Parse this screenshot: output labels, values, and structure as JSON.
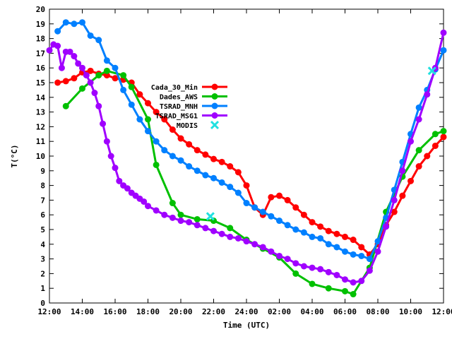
{
  "chart_data": {
    "type": "line",
    "xlabel": "Time (UTC)",
    "ylabel": "T(°C)",
    "x_start": "12:00",
    "x_end": "12:00 (next day)",
    "x_range_hours": [
      0,
      24
    ],
    "ylim": [
      0,
      20
    ],
    "y_ticks": [
      0,
      1,
      2,
      3,
      4,
      5,
      6,
      7,
      8,
      9,
      10,
      11,
      12,
      13,
      14,
      15,
      16,
      17,
      18,
      19,
      20
    ],
    "x_ticks": [
      {
        "h": 0,
        "label": "12:00"
      },
      {
        "h": 2,
        "label": "14:00"
      },
      {
        "h": 4,
        "label": "16:00"
      },
      {
        "h": 6,
        "label": "18:00"
      },
      {
        "h": 8,
        "label": "20:00"
      },
      {
        "h": 10,
        "label": "22:00"
      },
      {
        "h": 12,
        "label": "24:00"
      },
      {
        "h": 14,
        "label": "02:00"
      },
      {
        "h": 16,
        "label": "04:00"
      },
      {
        "h": 18,
        "label": "06:00"
      },
      {
        "h": 20,
        "label": "08:00"
      },
      {
        "h": 22,
        "label": "10:00"
      },
      {
        "h": 24,
        "label": "12:00"
      }
    ],
    "grid": false,
    "legend_position": "center-left",
    "series": [
      {
        "name": "Cada_30_Min",
        "color": "#ff0000",
        "marker": "circle",
        "points": [
          [
            0.5,
            15.0
          ],
          [
            1.0,
            15.1
          ],
          [
            1.5,
            15.3
          ],
          [
            2.0,
            15.7
          ],
          [
            2.5,
            15.8
          ],
          [
            3.0,
            15.6
          ],
          [
            3.5,
            15.5
          ],
          [
            4.0,
            15.3
          ],
          [
            4.5,
            15.2
          ],
          [
            5.0,
            15.0
          ],
          [
            5.5,
            14.2
          ],
          [
            6.0,
            13.6
          ],
          [
            6.5,
            13.0
          ],
          [
            7.0,
            12.5
          ],
          [
            7.5,
            11.8
          ],
          [
            8.0,
            11.2
          ],
          [
            8.5,
            10.8
          ],
          [
            9.0,
            10.4
          ],
          [
            9.5,
            10.1
          ],
          [
            10.0,
            9.8
          ],
          [
            10.5,
            9.6
          ],
          [
            11.0,
            9.3
          ],
          [
            11.5,
            8.9
          ],
          [
            12.0,
            8.0
          ],
          [
            12.5,
            6.5
          ],
          [
            13.0,
            6.0
          ],
          [
            13.5,
            7.2
          ],
          [
            14.0,
            7.3
          ],
          [
            14.5,
            7.0
          ],
          [
            15.0,
            6.5
          ],
          [
            15.5,
            6.0
          ],
          [
            16.0,
            5.5
          ],
          [
            16.5,
            5.2
          ],
          [
            17.0,
            4.9
          ],
          [
            17.5,
            4.7
          ],
          [
            18.0,
            4.5
          ],
          [
            18.5,
            4.3
          ],
          [
            19.0,
            3.8
          ],
          [
            19.5,
            3.3
          ],
          [
            20.0,
            4.0
          ],
          [
            20.5,
            5.3
          ],
          [
            21.0,
            6.2
          ],
          [
            21.5,
            7.3
          ],
          [
            22.0,
            8.3
          ],
          [
            22.5,
            9.3
          ],
          [
            23.0,
            10.0
          ],
          [
            23.5,
            10.7
          ],
          [
            24.0,
            11.3
          ]
        ]
      },
      {
        "name": "Dades_AWS",
        "color": "#00c000",
        "marker": "circle",
        "points": [
          [
            1.0,
            13.4
          ],
          [
            2.0,
            14.6
          ],
          [
            3.0,
            15.5
          ],
          [
            3.5,
            15.8
          ],
          [
            4.5,
            15.5
          ],
          [
            5.0,
            14.7
          ],
          [
            6.0,
            12.5
          ],
          [
            6.5,
            9.4
          ],
          [
            7.5,
            6.8
          ],
          [
            8.0,
            6.0
          ],
          [
            9.0,
            5.7
          ],
          [
            10.0,
            5.6
          ],
          [
            11.0,
            5.1
          ],
          [
            12.0,
            4.3
          ],
          [
            13.0,
            3.7
          ],
          [
            14.0,
            3.1
          ],
          [
            15.0,
            2.0
          ],
          [
            16.0,
            1.3
          ],
          [
            17.0,
            1.0
          ],
          [
            18.0,
            0.8
          ],
          [
            18.5,
            0.6
          ],
          [
            19.5,
            2.4
          ],
          [
            20.5,
            6.2
          ],
          [
            21.5,
            8.6
          ],
          [
            22.5,
            10.4
          ],
          [
            23.5,
            11.5
          ],
          [
            24.0,
            11.7
          ]
        ]
      },
      {
        "name": "TSRAD_MNH",
        "color": "#0080ff",
        "marker": "circle",
        "points": [
          [
            0.5,
            18.5
          ],
          [
            1.0,
            19.1
          ],
          [
            1.5,
            19.0
          ],
          [
            2.0,
            19.1
          ],
          [
            2.5,
            18.2
          ],
          [
            3.0,
            17.9
          ],
          [
            3.5,
            16.5
          ],
          [
            4.0,
            16.0
          ],
          [
            4.5,
            14.5
          ],
          [
            5.0,
            13.5
          ],
          [
            5.5,
            12.5
          ],
          [
            6.0,
            11.7
          ],
          [
            6.5,
            11.0
          ],
          [
            7.0,
            10.4
          ],
          [
            7.5,
            10.0
          ],
          [
            8.0,
            9.7
          ],
          [
            8.5,
            9.3
          ],
          [
            9.0,
            9.0
          ],
          [
            9.5,
            8.7
          ],
          [
            10.0,
            8.5
          ],
          [
            10.5,
            8.2
          ],
          [
            11.0,
            7.9
          ],
          [
            11.5,
            7.5
          ],
          [
            12.0,
            6.8
          ],
          [
            12.5,
            6.5
          ],
          [
            13.0,
            6.2
          ],
          [
            13.5,
            5.9
          ],
          [
            14.0,
            5.6
          ],
          [
            14.5,
            5.3
          ],
          [
            15.0,
            5.0
          ],
          [
            15.5,
            4.8
          ],
          [
            16.0,
            4.5
          ],
          [
            16.5,
            4.4
          ],
          [
            17.0,
            4.0
          ],
          [
            17.5,
            3.8
          ],
          [
            18.0,
            3.5
          ],
          [
            18.5,
            3.3
          ],
          [
            19.0,
            3.2
          ],
          [
            19.5,
            3.0
          ],
          [
            20.0,
            4.2
          ],
          [
            20.5,
            5.8
          ],
          [
            21.0,
            7.7
          ],
          [
            21.5,
            9.6
          ],
          [
            22.0,
            11.5
          ],
          [
            22.5,
            13.3
          ],
          [
            23.0,
            14.5
          ],
          [
            23.5,
            15.9
          ],
          [
            24.0,
            17.2
          ]
        ]
      },
      {
        "name": "TSRAD_MSG1",
        "color": "#a000ff",
        "marker": "circle",
        "points": [
          [
            0.0,
            17.2
          ],
          [
            0.25,
            17.6
          ],
          [
            0.5,
            17.5
          ],
          [
            0.75,
            16.0
          ],
          [
            1.0,
            17.1
          ],
          [
            1.25,
            17.1
          ],
          [
            1.5,
            16.8
          ],
          [
            1.75,
            16.3
          ],
          [
            2.0,
            16.0
          ],
          [
            2.25,
            15.5
          ],
          [
            2.5,
            15.0
          ],
          [
            2.75,
            14.3
          ],
          [
            3.0,
            13.4
          ],
          [
            3.25,
            12.2
          ],
          [
            3.5,
            11.0
          ],
          [
            3.75,
            10.0
          ],
          [
            4.0,
            9.2
          ],
          [
            4.25,
            8.3
          ],
          [
            4.5,
            8.0
          ],
          [
            4.75,
            7.8
          ],
          [
            5.0,
            7.5
          ],
          [
            5.25,
            7.3
          ],
          [
            5.5,
            7.1
          ],
          [
            5.75,
            6.9
          ],
          [
            6.0,
            6.6
          ],
          [
            6.5,
            6.3
          ],
          [
            7.0,
            6.0
          ],
          [
            7.5,
            5.8
          ],
          [
            8.0,
            5.6
          ],
          [
            8.5,
            5.5
          ],
          [
            9.0,
            5.3
          ],
          [
            9.5,
            5.1
          ],
          [
            10.0,
            4.9
          ],
          [
            10.5,
            4.7
          ],
          [
            11.0,
            4.5
          ],
          [
            11.5,
            4.4
          ],
          [
            12.0,
            4.2
          ],
          [
            12.5,
            4.0
          ],
          [
            13.0,
            3.8
          ],
          [
            13.5,
            3.5
          ],
          [
            14.0,
            3.2
          ],
          [
            14.5,
            3.0
          ],
          [
            15.0,
            2.7
          ],
          [
            15.5,
            2.5
          ],
          [
            16.0,
            2.4
          ],
          [
            16.5,
            2.3
          ],
          [
            17.0,
            2.1
          ],
          [
            17.5,
            1.9
          ],
          [
            18.0,
            1.6
          ],
          [
            18.5,
            1.4
          ],
          [
            19.0,
            1.5
          ],
          [
            19.5,
            2.2
          ],
          [
            20.0,
            3.5
          ],
          [
            20.5,
            5.2
          ],
          [
            21.0,
            7.0
          ],
          [
            21.5,
            9.0
          ],
          [
            22.0,
            11.0
          ],
          [
            22.5,
            12.5
          ],
          [
            23.0,
            14.2
          ],
          [
            23.5,
            16.0
          ],
          [
            24.0,
            18.4
          ]
        ]
      },
      {
        "name": "MODIS",
        "color": "#20e0e0",
        "marker": "x",
        "points": [
          [
            9.8,
            5.9
          ],
          [
            23.3,
            15.8
          ]
        ]
      }
    ]
  }
}
